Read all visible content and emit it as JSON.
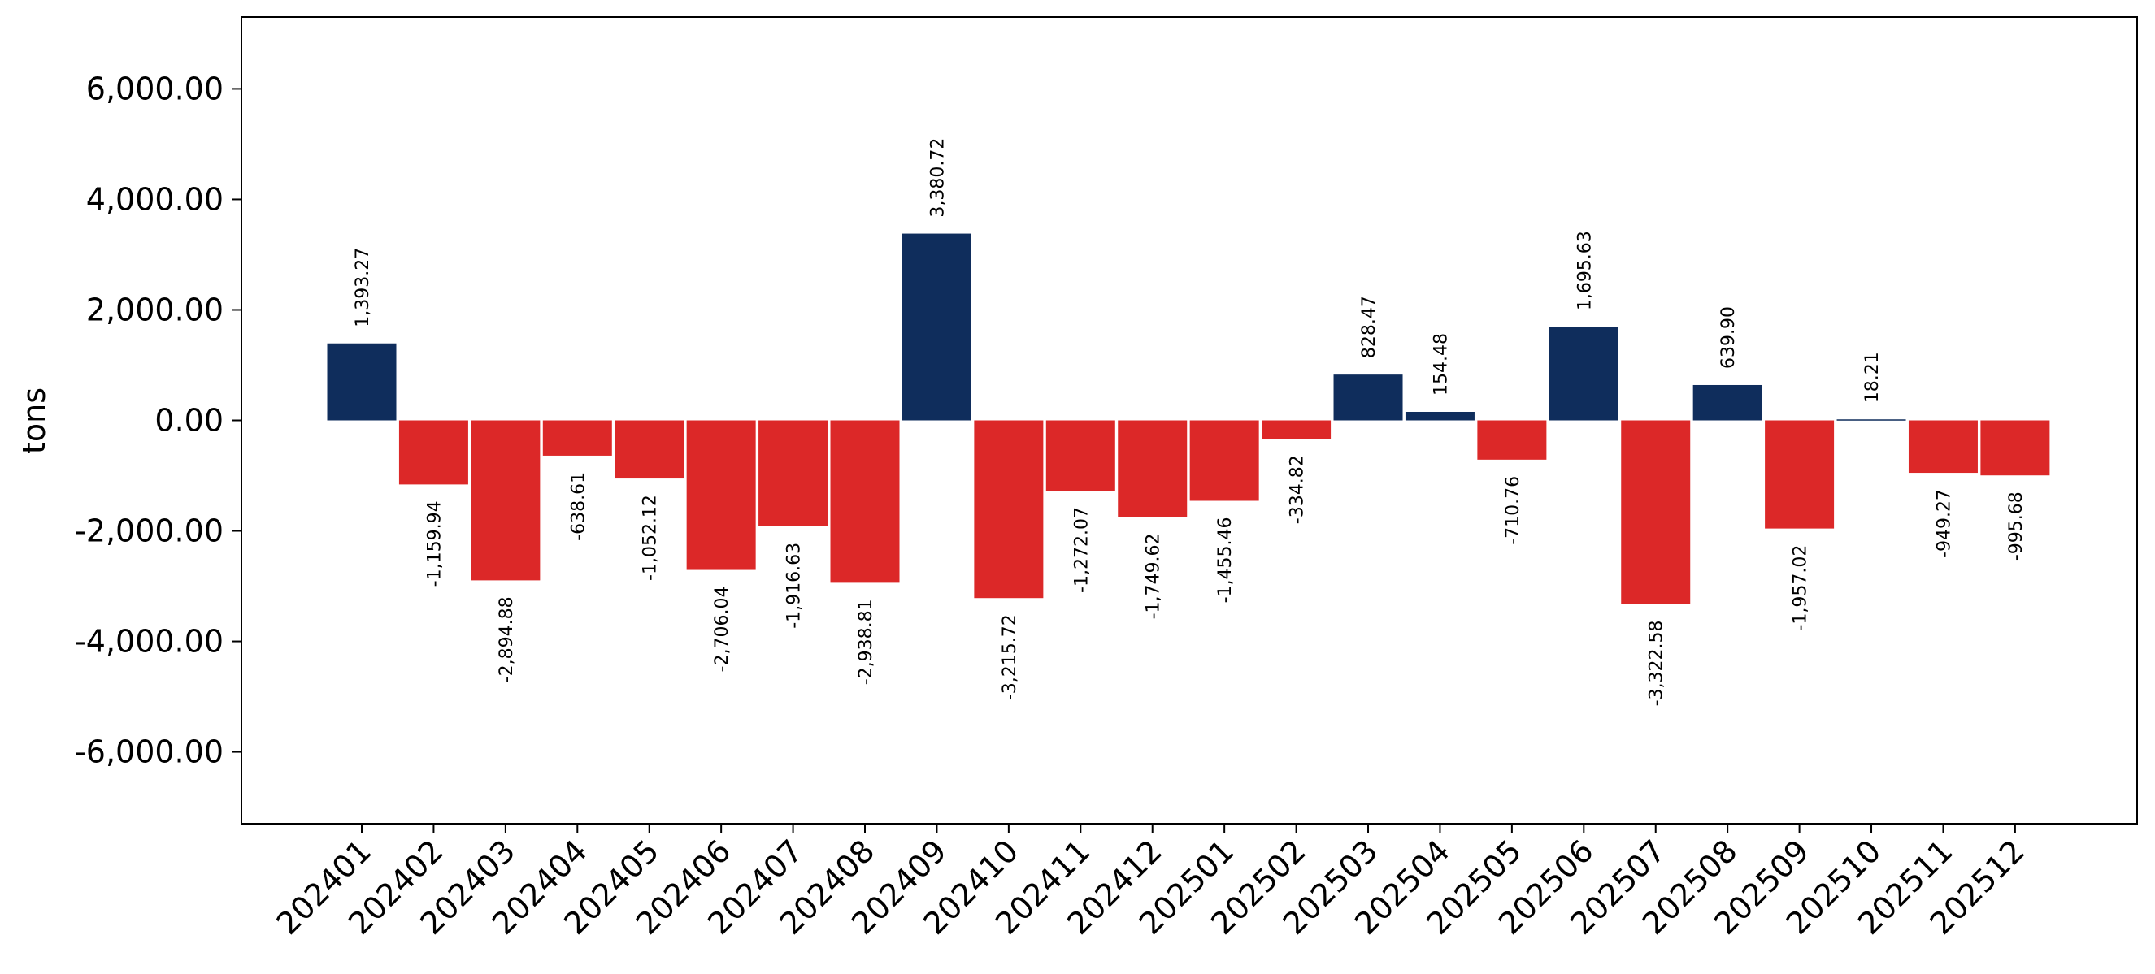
{
  "chart_data": {
    "type": "bar",
    "categories": [
      "202401",
      "202402",
      "202403",
      "202404",
      "202405",
      "202406",
      "202407",
      "202408",
      "202409",
      "202410",
      "202411",
      "202412",
      "202501",
      "202502",
      "202503",
      "202504",
      "202505",
      "202506",
      "202507",
      "202508",
      "202509",
      "202510",
      "202511",
      "202512"
    ],
    "values": [
      1393.27,
      -1159.94,
      -2894.88,
      -638.61,
      -1052.12,
      -2706.04,
      -1916.63,
      -2938.81,
      3380.72,
      -3215.72,
      -1272.07,
      -1749.62,
      -1455.46,
      -334.82,
      828.47,
      154.48,
      -710.76,
      1695.63,
      -3322.58,
      639.9,
      -1957.02,
      18.21,
      -949.27,
      -995.68
    ],
    "data_labels": [
      "1,393.27",
      "-1,159.94",
      "-2,894.88",
      "-638.61",
      "-1,052.12",
      "-2,706.04",
      "-1,916.63",
      "-2,938.81",
      "3,380.72",
      "-3,215.72",
      "-1,272.07",
      "-1,749.62",
      "-1,455.46",
      "-334.82",
      "828.47",
      "154.48",
      "-710.76",
      "1,695.63",
      "-3,322.58",
      "639.90",
      "-1,957.02",
      "18.21",
      "-949.27",
      "-995.68"
    ],
    "title": "",
    "xlabel": "",
    "ylabel": "tons",
    "ylim": [
      -7300,
      7300
    ],
    "yticks": [
      -6000,
      -4000,
      -2000,
      0,
      2000,
      4000,
      6000
    ],
    "ytick_labels": [
      "-6,000.00",
      "-4,000.00",
      "-2,000.00",
      "0.00",
      "2,000.00",
      "4,000.00",
      "6,000.00"
    ],
    "grid": false,
    "legend": "none",
    "colors": {
      "positive": "#0f2d5c",
      "negative": "#dc2828"
    }
  }
}
